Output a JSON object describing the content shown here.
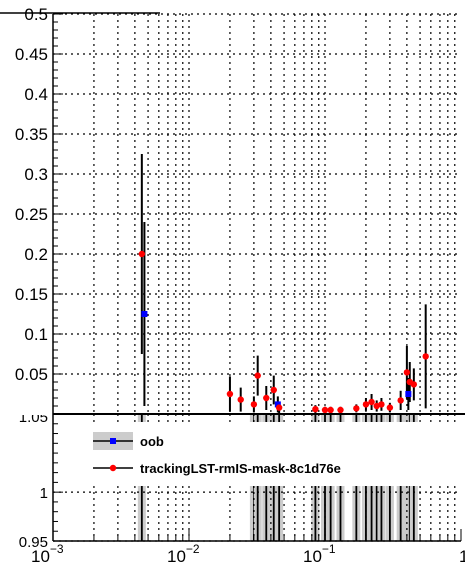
{
  "chart_data": [
    {
      "type": "scatter",
      "x_scale": "log",
      "xlim": [
        0.001,
        1
      ],
      "ylim": [
        0,
        0.5
      ],
      "grid": true,
      "y_ticks": [
        {
          "v": 0.5,
          "label": "0.5"
        },
        {
          "v": 0.45,
          "label": "0.45"
        },
        {
          "v": 0.4,
          "label": "0.4"
        },
        {
          "v": 0.35,
          "label": "0.35"
        },
        {
          "v": 0.3,
          "label": "0.3"
        },
        {
          "v": 0.25,
          "label": "0.25"
        },
        {
          "v": 0.2,
          "label": "0.2"
        },
        {
          "v": 0.15,
          "label": "0.15"
        },
        {
          "v": 0.1,
          "label": "0.1"
        },
        {
          "v": 0.05,
          "label": "0.05"
        }
      ],
      "series": [
        {
          "name": "oob",
          "color": "#0000ff",
          "points": [
            {
              "x": 0.0047,
              "y": 0.125,
              "err": 0.115
            },
            {
              "x": 0.045,
              "y": 0.012,
              "err": 0.01
            },
            {
              "x": 0.41,
              "y": 0.025,
              "err": 0.02
            }
          ]
        },
        {
          "name": "trackingLST-rmIS-mask-8c1d76e",
          "color": "#ff0000",
          "points": [
            {
              "x": 0.0045,
              "y": 0.2,
              "err": 0.125
            },
            {
              "x": 0.02,
              "y": 0.025,
              "err": 0.022
            },
            {
              "x": 0.024,
              "y": 0.018,
              "err": 0.015
            },
            {
              "x": 0.03,
              "y": 0.012,
              "err": 0.01
            },
            {
              "x": 0.032,
              "y": 0.048,
              "err": 0.025
            },
            {
              "x": 0.037,
              "y": 0.02,
              "err": 0.015
            },
            {
              "x": 0.042,
              "y": 0.03,
              "err": 0.018
            },
            {
              "x": 0.046,
              "y": 0.008,
              "err": 0.007
            },
            {
              "x": 0.085,
              "y": 0.006,
              "err": 0.005
            },
            {
              "x": 0.1,
              "y": 0.005,
              "err": 0.004
            },
            {
              "x": 0.11,
              "y": 0.005,
              "err": 0.004
            },
            {
              "x": 0.13,
              "y": 0.005,
              "err": 0.004
            },
            {
              "x": 0.17,
              "y": 0.007,
              "err": 0.005
            },
            {
              "x": 0.2,
              "y": 0.012,
              "err": 0.008
            },
            {
              "x": 0.22,
              "y": 0.015,
              "err": 0.01
            },
            {
              "x": 0.24,
              "y": 0.01,
              "err": 0.007
            },
            {
              "x": 0.26,
              "y": 0.012,
              "err": 0.008
            },
            {
              "x": 0.3,
              "y": 0.008,
              "err": 0.006
            },
            {
              "x": 0.36,
              "y": 0.017,
              "err": 0.012
            },
            {
              "x": 0.4,
              "y": 0.052,
              "err": 0.033
            },
            {
              "x": 0.42,
              "y": 0.04,
              "err": 0.025
            },
            {
              "x": 0.45,
              "y": 0.037,
              "err": 0.02
            },
            {
              "x": 0.55,
              "y": 0.072,
              "err": 0.065
            }
          ]
        }
      ]
    },
    {
      "type": "scatter",
      "x_scale": "log",
      "xlim": [
        0.001,
        1
      ],
      "ylim": [
        0.95,
        1.08
      ],
      "grid": true,
      "x_ticks": [
        {
          "base": "10",
          "exp": "−3"
        },
        {
          "base": "10",
          "exp": "−2"
        },
        {
          "base": "10",
          "exp": "−1"
        },
        {
          "base": "1",
          "exp": ""
        }
      ],
      "y_ticks": [
        {
          "v": 1.0,
          "label": "1"
        },
        {
          "v": 0.95,
          "label": "0.95"
        }
      ],
      "top_label": "1.05",
      "ratio_x": [
        0.0045,
        0.03,
        0.032,
        0.037,
        0.042,
        0.046,
        0.085,
        0.1,
        0.11,
        0.13,
        0.17,
        0.2,
        0.22,
        0.24,
        0.26,
        0.3,
        0.36,
        0.4,
        0.42,
        0.45
      ]
    }
  ],
  "legend": {
    "position": "top-right of ratio panel",
    "entries": [
      {
        "label": "oob",
        "marker_color": "#0000ff",
        "box": true
      },
      {
        "label": "trackingLST-rmIS-mask-8c1d76e",
        "marker_color": "#ff0000",
        "box": false
      }
    ]
  }
}
